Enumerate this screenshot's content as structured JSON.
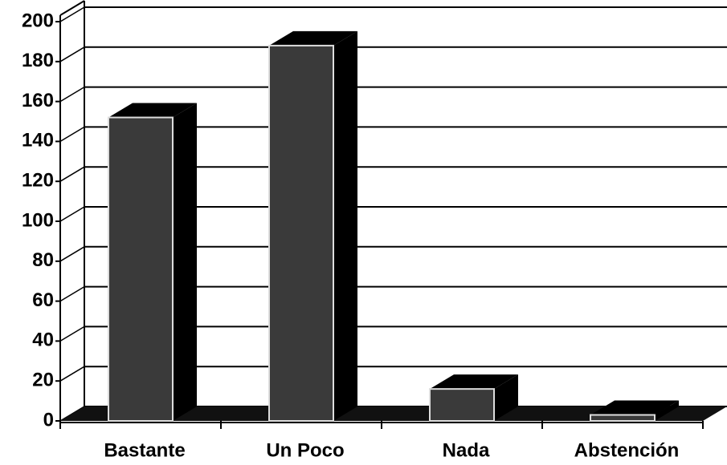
{
  "chart_data": {
    "type": "bar3d",
    "categories": [
      "Bastante",
      "Un Poco",
      "Nada",
      "Abstención"
    ],
    "values": [
      152,
      188,
      16,
      3
    ],
    "color": "#3a3a3a",
    "ylim": [
      0,
      200
    ],
    "yticks": [
      0,
      20,
      40,
      60,
      80,
      100,
      120,
      140,
      160,
      180,
      200
    ],
    "grid": true
  }
}
